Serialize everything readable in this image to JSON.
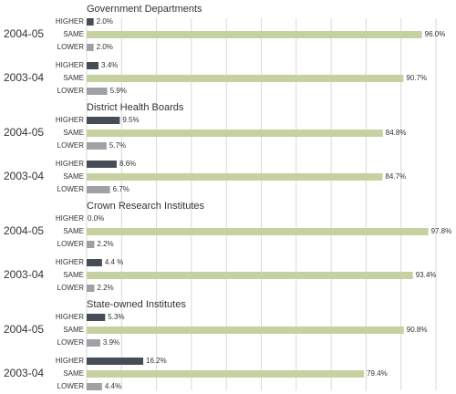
{
  "chart_data": {
    "type": "bar",
    "orientation": "horizontal",
    "categories": [
      "HIGHER",
      "SAME",
      "LOWER"
    ],
    "xlim": [
      0,
      100
    ],
    "grid": true,
    "colors": {
      "HIGHER": "#474d55",
      "SAME": "#c5d1a0",
      "LOWER": "#9ea2a6"
    },
    "groups": [
      {
        "title": "Government Departments",
        "years": [
          {
            "year": "2004-05",
            "values": [
              2.0,
              96.0,
              2.0
            ],
            "labels": [
              "2.0%",
              "96.0%",
              "2.0%"
            ]
          },
          {
            "year": "2003-04",
            "values": [
              3.4,
              90.7,
              5.9
            ],
            "labels": [
              "3.4%",
              "90.7%",
              "5.9%"
            ]
          }
        ]
      },
      {
        "title": "District Health Boards",
        "years": [
          {
            "year": "2004-05",
            "values": [
              9.5,
              84.8,
              5.7
            ],
            "labels": [
              "9.5%",
              "84.8%",
              "5.7%"
            ]
          },
          {
            "year": "2003-04",
            "values": [
              8.6,
              84.7,
              6.7
            ],
            "labels": [
              "8.6%",
              "84.7%",
              "6.7%"
            ]
          }
        ]
      },
      {
        "title": "Crown Research Institutes",
        "years": [
          {
            "year": "2004-05",
            "values": [
              0.0,
              97.8,
              2.2
            ],
            "labels": [
              "0.0%",
              "97.8%",
              "2.2%"
            ]
          },
          {
            "year": "2003-04",
            "values": [
              4.4,
              93.4,
              2.2
            ],
            "labels": [
              "4.4 %",
              "93.4%",
              "2.2%"
            ]
          }
        ]
      },
      {
        "title": "State-owned Institutes",
        "years": [
          {
            "year": "2004-05",
            "values": [
              5.3,
              90.8,
              3.9
            ],
            "labels": [
              "5.3%",
              "90.8%",
              "3.9%"
            ]
          },
          {
            "year": "2003-04",
            "values": [
              16.2,
              79.4,
              4.4
            ],
            "labels": [
              "16.2%",
              "79.4%",
              "4.4%"
            ]
          }
        ]
      }
    ]
  }
}
